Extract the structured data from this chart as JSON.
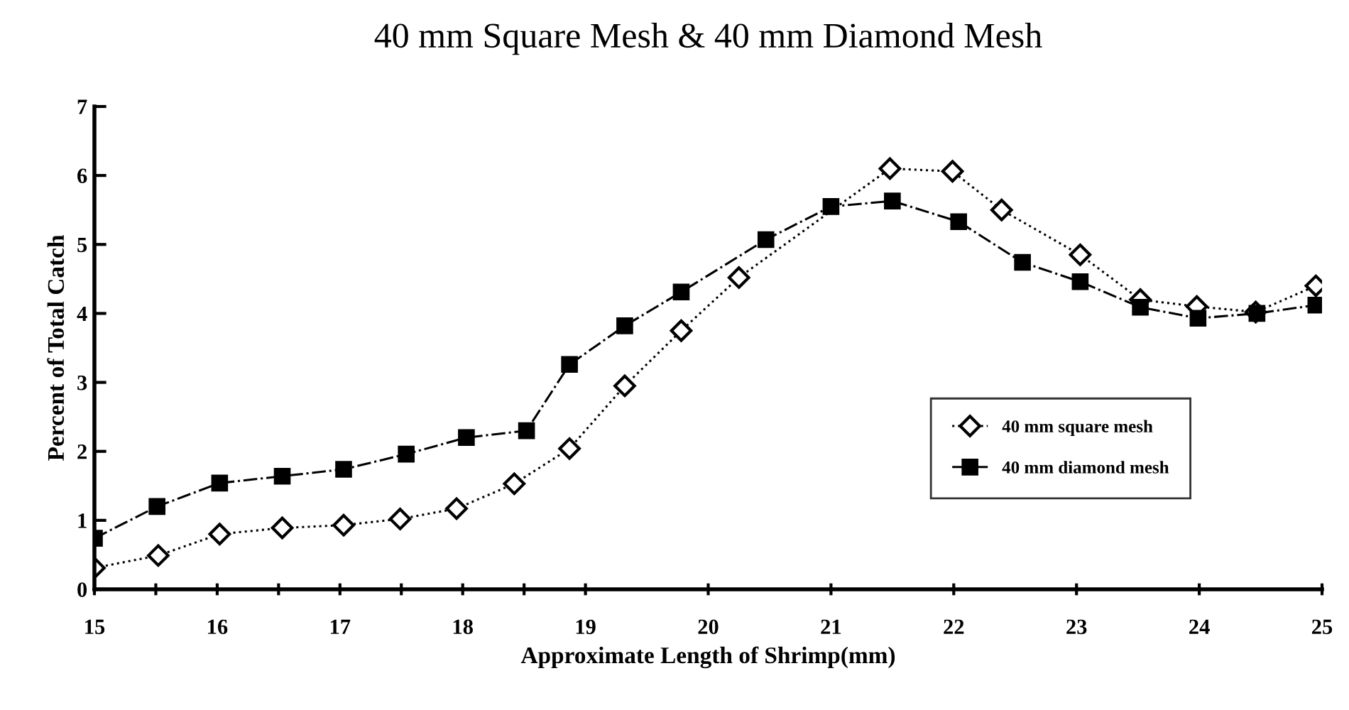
{
  "chart_data": {
    "type": "line",
    "title": "40 mm Square Mesh & 40 mm Diamond Mesh",
    "xlabel": "Approximate Length of Shrimp(mm)",
    "ylabel": "Percent of Total Catch",
    "xlim": [
      15,
      25
    ],
    "ylim": [
      0,
      7
    ],
    "xticks": [
      15,
      {
        "value": 15.5,
        "label": null
      },
      16,
      {
        "value": 16.5,
        "label": null
      },
      17,
      {
        "value": 17.5,
        "label": null
      },
      18,
      {
        "value": 18.5,
        "label": null
      },
      19,
      20,
      21,
      22,
      23,
      24,
      25
    ],
    "yticks": [
      0,
      1,
      2,
      3,
      4,
      5,
      6,
      7
    ],
    "grid": false,
    "legend": "lower right",
    "series": [
      {
        "name": "40 mm square mesh",
        "color": "#000000",
        "marker": "diamond",
        "line_style": "dotted",
        "x": [
          15,
          15.52,
          16.02,
          16.53,
          17.03,
          17.49,
          17.95,
          18.42,
          18.87,
          19.32,
          19.78,
          20.25,
          21.48,
          21.99,
          22.39,
          23.03,
          23.52,
          23.98,
          24.46,
          24.95
        ],
        "values": [
          0.31,
          0.49,
          0.8,
          0.89,
          0.93,
          1.02,
          1.17,
          1.53,
          2.04,
          2.95,
          3.75,
          4.52,
          6.1,
          6.06,
          5.5,
          4.85,
          4.2,
          4.1,
          4.02,
          4.4
        ]
      },
      {
        "name": "40 mm diamond mesh",
        "color": "#000000",
        "marker": "square",
        "line_style": "dashed",
        "x": [
          15,
          15.51,
          16.02,
          16.53,
          17.03,
          17.54,
          18.03,
          18.52,
          18.87,
          19.32,
          19.78,
          20.47,
          21.0,
          21.5,
          22.04,
          22.56,
          23.03,
          23.52,
          23.99,
          24.47,
          24.95
        ],
        "values": [
          0.74,
          1.2,
          1.54,
          1.64,
          1.74,
          1.96,
          2.2,
          2.3,
          3.26,
          3.82,
          4.31,
          5.07,
          5.55,
          5.63,
          5.33,
          4.74,
          4.46,
          4.09,
          3.93,
          4.0,
          4.12
        ]
      }
    ]
  }
}
